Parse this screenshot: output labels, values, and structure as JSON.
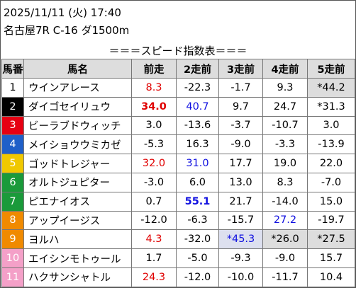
{
  "header": {
    "datetime": "2025/11/11 (火) 17:40",
    "race": "名古屋7R C-16 ダ1500m",
    "subtitle": "＝＝＝スピード指数表＝＝＝"
  },
  "table": {
    "columns": [
      "馬番",
      "馬名",
      "前走",
      "2走前",
      "3走前",
      "4走前",
      "5走前"
    ],
    "rows": [
      [
        "1",
        "ウインアレース",
        "8.3",
        "-22.3",
        "-1.7",
        "9.3",
        "*44.2"
      ],
      [
        "2",
        "ダイゴセイリュウ",
        "34.0",
        "40.7",
        "9.7",
        "24.7",
        "*31.3"
      ],
      [
        "3",
        "ビーラブドウィッチ",
        "3.0",
        "-13.6",
        "-3.7",
        "-10.7",
        "3.0"
      ],
      [
        "4",
        "メイショウウミカゼ",
        "-5.3",
        "16.3",
        "-9.0",
        "-3.3",
        "-13.9"
      ],
      [
        "5",
        "ゴッドトレジャー",
        "32.0",
        "31.0",
        "17.7",
        "19.0",
        "22.0"
      ],
      [
        "6",
        "オルトジュピター",
        "-3.0",
        "6.0",
        "13.0",
        "8.3",
        "-7.0"
      ],
      [
        "7",
        "ピエナイオス",
        "0.7",
        "55.1",
        "21.7",
        "-14.0",
        "15.0"
      ],
      [
        "8",
        "アップイージス",
        "-12.0",
        "-6.3",
        "-15.7",
        "27.2",
        "-19.7"
      ],
      [
        "9",
        "ヨルハ",
        "4.3",
        "-32.0",
        "*45.3",
        "*26.0",
        "*27.5"
      ],
      [
        "10",
        "エイシンモトゥール",
        "1.7",
        "-5.0",
        "-9.3",
        "-9.0",
        "15.7"
      ],
      [
        "11",
        "ハクサンシャトル",
        "24.3",
        "-12.0",
        "-10.0",
        "-11.7",
        "10.4"
      ]
    ]
  }
}
